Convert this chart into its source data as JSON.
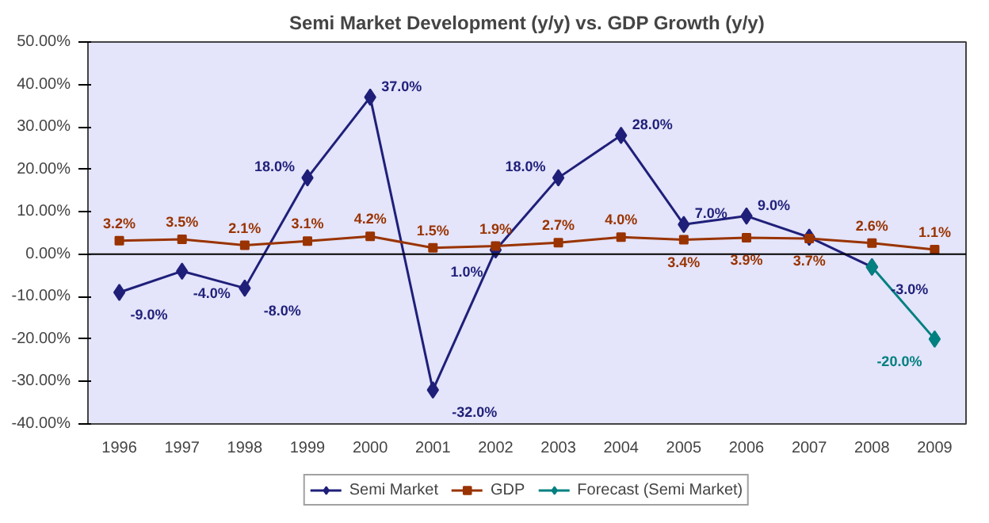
{
  "chart_data": {
    "type": "line",
    "title": "Semi Market Development (y/y) vs. GDP Growth (y/y)",
    "categories": [
      "1996",
      "1997",
      "1998",
      "1999",
      "2000",
      "2001",
      "2002",
      "2003",
      "2004",
      "2005",
      "2006",
      "2007",
      "2008",
      "2009"
    ],
    "series": [
      {
        "name": "Semi Market",
        "color": "#1f1f7a",
        "marker": "diamond",
        "values": [
          -9,
          -4,
          -8,
          18,
          37,
          -32,
          1,
          18,
          28,
          7,
          9,
          4,
          -3,
          null
        ],
        "value_labels": [
          "-9.0%",
          "-4.0%",
          "-8.0%",
          "18.0%",
          "37.0%",
          "-32.0%",
          "1.0%",
          "18.0%",
          "28.0%",
          "7.0%",
          "9.0%",
          null,
          "-3.0%",
          null
        ]
      },
      {
        "name": "GDP",
        "color": "#993300",
        "marker": "square",
        "values": [
          3.2,
          3.5,
          2.1,
          3.1,
          4.2,
          1.5,
          1.9,
          2.7,
          4.0,
          3.4,
          3.9,
          3.7,
          2.6,
          1.1
        ],
        "value_labels": [
          "3.2%",
          "3.5%",
          "2.1%",
          "3.1%",
          "4.2%",
          "1.5%",
          "1.9%",
          "2.7%",
          "4.0%",
          "3.4%",
          "3.9%",
          "3.7%",
          "2.6%",
          "1.1%"
        ]
      },
      {
        "name": "Forecast (Semi Market)",
        "color": "#008080",
        "marker": "diamond",
        "values": [
          null,
          null,
          null,
          null,
          null,
          null,
          null,
          null,
          null,
          null,
          null,
          null,
          -3,
          -20
        ],
        "value_labels": [
          null,
          null,
          null,
          null,
          null,
          null,
          null,
          null,
          null,
          null,
          null,
          null,
          null,
          "-20.0%"
        ]
      }
    ],
    "ylim": [
      -40,
      50
    ],
    "yticks": [
      {
        "value": -40,
        "label": "-40.00%"
      },
      {
        "value": -30,
        "label": "-30.00%"
      },
      {
        "value": -20,
        "label": "-20.00%"
      },
      {
        "value": -10,
        "label": "-10.00%"
      },
      {
        "value": 0,
        "label": "0.00%"
      },
      {
        "value": 10,
        "label": "10.00%"
      },
      {
        "value": 20,
        "label": "20.00%"
      },
      {
        "value": 30,
        "label": "30.00%"
      },
      {
        "value": 40,
        "label": "40.00%"
      },
      {
        "value": 50,
        "label": "50.00%"
      }
    ],
    "ref_lines": [
      {
        "axis": "y",
        "value": 0,
        "color": "#000000"
      }
    ],
    "grid": false,
    "legend": "bottom"
  }
}
